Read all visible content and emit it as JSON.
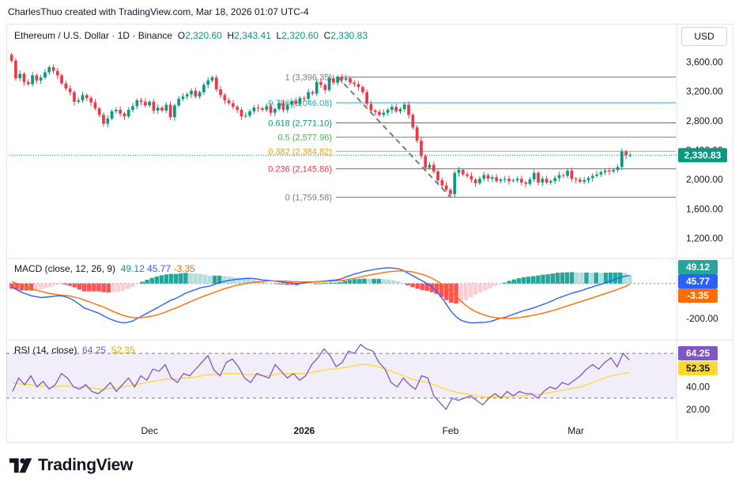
{
  "header": {
    "attribution": "CharlesThuo created with TradingView.com, Mar 18, 2026 01:07 UTC-4"
  },
  "symbol": {
    "name": "Ethereum / U.S. Dollar · 1D · Binance",
    "o_label": "O",
    "o": "2,320.60",
    "h_label": "H",
    "h": "2,343.41",
    "l_label": "L",
    "l": "2,320.60",
    "c_label": "C",
    "c": "2,330.83"
  },
  "currency_button": "USD",
  "logo_text": "TradingView",
  "colors": {
    "up": "#089981",
    "down": "#f23645",
    "macd": "#2962ff",
    "signal": "#ff6d00",
    "rsi": "#7e57c2",
    "rsi_ma": "#fdd835",
    "price_label": "#089981"
  },
  "chart_data": [
    {
      "type": "candlestick",
      "title": "Ethereum / U.S. Dollar · 1D · Binance",
      "x_ticks": [
        "Dec",
        "2026",
        "Feb",
        "Mar"
      ],
      "y_ticks": [
        "3,600.00",
        "3,200.00",
        "2,800.00",
        "2,400.00",
        "2,000.00",
        "1,600.00",
        "1,200.00"
      ],
      "ylim": [
        1000,
        3800
      ],
      "last_price": "2,330.83",
      "closes": [
        3620,
        3380,
        3440,
        3330,
        3300,
        3420,
        3350,
        3390,
        3460,
        3530,
        3480,
        3420,
        3310,
        3240,
        3190,
        3060,
        3080,
        3150,
        3110,
        3050,
        2970,
        2880,
        2760,
        2830,
        2930,
        2950,
        2900,
        2860,
        2950,
        3000,
        3080,
        3060,
        3010,
        3060,
        2940,
        2980,
        2940,
        3020,
        2850,
        3010,
        3100,
        3130,
        3160,
        3210,
        3130,
        3190,
        3290,
        3350,
        3390,
        3230,
        3150,
        3080,
        3040,
        2990,
        2950,
        2860,
        2870,
        2930,
        2980,
        2970,
        2950,
        3000,
        2910,
        2960,
        3040,
        2950,
        3020,
        3070,
        3030,
        3110,
        3100,
        3190,
        3170,
        3330,
        3290,
        3220,
        3380,
        3320,
        3400,
        3360,
        3380,
        3320,
        3300,
        3260,
        3190,
        3030,
        2940,
        2920,
        2880,
        2910,
        2950,
        2990,
        2930,
        2960,
        3020,
        2880,
        2710,
        2530,
        2320,
        2160,
        2200,
        2110,
        1990,
        1920,
        1860,
        1800,
        2090,
        2130,
        2070,
        2050,
        2000,
        1950,
        2010,
        2060,
        2010,
        2030,
        1980,
        2000,
        2010,
        1980,
        1990,
        2010,
        1960,
        1940,
        2000,
        2090,
        1960,
        2010,
        1960,
        1980,
        2020,
        2060,
        2050,
        2120,
        2010,
        2000,
        1970,
        1990,
        2020,
        2050,
        2070,
        2100,
        2120,
        2110,
        2130,
        2170,
        2380,
        2330,
        2331
      ],
      "fibonacci": {
        "levels": [
          "1 (3,396.35)",
          "0.786 (3,046.08)",
          "0.618 (2,771.10)",
          "0.5 (2,577.96)",
          "0.382 (2,384.82)",
          "0.236 (2,145.86)",
          "0 (1,759.58)"
        ],
        "prices": [
          3396.35,
          3046.08,
          2771.1,
          2577.96,
          2384.82,
          2145.86,
          1759.58
        ],
        "colors": [
          "#787b86",
          "#00bcd4",
          "#089981",
          "#4caf50",
          "#ff9800",
          "#f23645",
          "#787b86"
        ]
      }
    },
    {
      "type": "macd",
      "title": "MACD (close, 12, 26, 9)",
      "values": {
        "histogram": "49.12",
        "macd": "45.77",
        "signal": "-3.35"
      },
      "y_ticks": [
        "-200.00"
      ],
      "ylim": [
        -300,
        130
      ],
      "macd_line": [
        -20,
        -35,
        -50,
        -60,
        -70,
        -75,
        -80,
        -78,
        -76,
        -72,
        -70,
        -75,
        -85,
        -100,
        -120,
        -140,
        -150,
        -160,
        -170,
        -185,
        -200,
        -210,
        -220,
        -225,
        -222,
        -215,
        -200,
        -185,
        -170,
        -155,
        -140,
        -125,
        -110,
        -95,
        -85,
        -70,
        -55,
        -45,
        -35,
        -25,
        -20,
        -15,
        -5,
        5,
        12,
        18,
        22,
        25,
        28,
        30,
        28,
        25,
        20,
        18,
        15,
        12,
        8,
        5,
        3,
        0,
        2,
        5,
        8,
        10,
        12,
        15,
        18,
        20,
        25,
        35,
        45,
        55,
        62,
        70,
        75,
        80,
        85,
        88,
        90,
        88,
        85,
        75,
        60,
        45,
        30,
        15,
        0,
        -20,
        -45,
        -80,
        -120,
        -160,
        -190,
        -210,
        -220,
        -225,
        -225,
        -223,
        -222,
        -218,
        -210,
        -200,
        -195,
        -185,
        -175,
        -165,
        -155,
        -148,
        -140,
        -130,
        -120,
        -110,
        -98,
        -85,
        -75,
        -65,
        -55,
        -48,
        -40,
        -30,
        -22,
        -12,
        -5,
        5,
        15,
        25,
        35,
        42,
        46
      ],
      "signal_line": [
        10,
        0,
        -10,
        -20,
        -30,
        -38,
        -45,
        -52,
        -58,
        -62,
        -66,
        -68,
        -72,
        -78,
        -85,
        -95,
        -105,
        -115,
        -125,
        -135,
        -148,
        -160,
        -172,
        -182,
        -190,
        -195,
        -196,
        -195,
        -192,
        -187,
        -180,
        -172,
        -162,
        -150,
        -140,
        -128,
        -116,
        -104,
        -92,
        -80,
        -70,
        -60,
        -50,
        -40,
        -30,
        -22,
        -14,
        -8,
        -2,
        3,
        7,
        10,
        12,
        14,
        15,
        15,
        14,
        13,
        11,
        10,
        9,
        9,
        9,
        10,
        11,
        12,
        13,
        15,
        17,
        20,
        25,
        30,
        36,
        42,
        48,
        53,
        58,
        63,
        67,
        70,
        72,
        72,
        70,
        66,
        60,
        52,
        42,
        30,
        15,
        -3,
        -25,
        -50,
        -75,
        -100,
        -125,
        -145,
        -160,
        -172,
        -182,
        -190,
        -195,
        -198,
        -200,
        -200,
        -198,
        -195,
        -191,
        -187,
        -182,
        -176,
        -170,
        -163,
        -155,
        -147,
        -138,
        -129,
        -120,
        -111,
        -102,
        -93,
        -84,
        -75,
        -66,
        -57,
        -48,
        -38,
        -28,
        -18,
        -3
      ]
    },
    {
      "type": "line",
      "title": "RSI (14, close)",
      "values": {
        "rsi": "64.25",
        "rsi_ma": "52.35"
      },
      "y_ticks": [
        "40.00",
        "20.00"
      ],
      "ylim": [
        15,
        80
      ],
      "bands": [
        30,
        70
      ],
      "rsi_line": [
        36,
        48,
        42,
        50,
        40,
        45,
        38,
        42,
        52,
        48,
        40,
        38,
        42,
        36,
        34,
        38,
        44,
        36,
        42,
        48,
        40,
        50,
        46,
        56,
        54,
        60,
        48,
        44,
        52,
        50,
        56,
        62,
        68,
        55,
        50,
        62,
        65,
        58,
        48,
        44,
        52,
        50,
        48,
        60,
        54,
        48,
        52,
        46,
        50,
        60,
        66,
        74,
        68,
        58,
        62,
        72,
        70,
        78,
        74,
        72,
        62,
        56,
        44,
        40,
        48,
        42,
        38,
        50,
        48,
        32,
        26,
        20,
        30,
        28,
        30,
        32,
        28,
        24,
        30,
        34,
        30,
        36,
        32,
        36,
        34,
        34,
        30,
        36,
        40,
        38,
        44,
        42,
        46,
        50,
        56,
        60,
        56,
        62,
        66,
        58,
        70,
        64
      ],
      "rsi_ma_line": [
        44,
        43,
        42,
        42,
        41,
        41,
        40,
        40,
        41,
        41,
        40,
        40,
        40,
        39,
        38,
        38,
        39,
        39,
        40,
        41,
        42,
        43,
        44,
        45,
        46,
        47,
        47,
        47,
        48,
        48,
        49,
        50,
        51,
        51,
        51,
        52,
        52,
        52,
        51,
        51,
        51,
        50,
        50,
        51,
        52,
        52,
        52,
        52,
        52,
        53,
        54,
        55,
        56,
        56,
        57,
        58,
        59,
        60,
        60,
        59,
        58,
        56,
        54,
        52,
        50,
        48,
        46,
        45,
        44,
        42,
        40,
        38,
        36,
        35,
        34,
        33,
        32,
        31,
        31,
        31,
        31,
        31,
        32,
        32,
        32,
        33,
        33,
        34,
        35,
        36,
        37,
        38,
        39,
        40,
        42,
        44,
        46,
        48,
        50,
        51,
        52,
        53
      ]
    }
  ]
}
